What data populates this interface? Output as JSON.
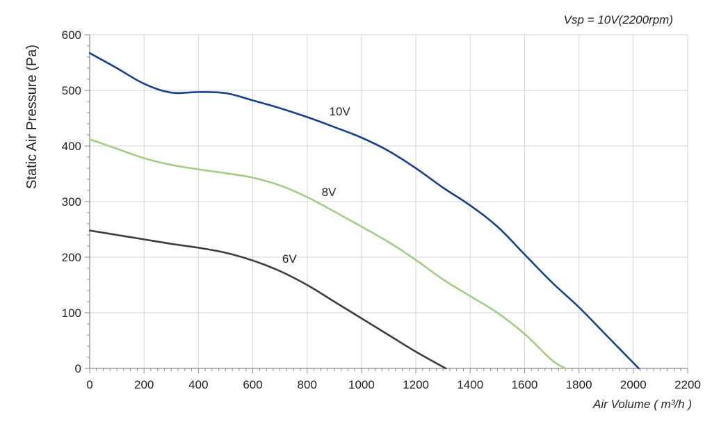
{
  "chart_data": {
    "type": "line",
    "title": "Vsp = 10V(2200rpm)",
    "xlabel": "Air Volume ( m³/h )",
    "ylabel": "Static Air Pressure  (Pa)",
    "xlim": [
      0,
      2200
    ],
    "ylim": [
      0,
      600
    ],
    "x_ticks": [
      0,
      200,
      400,
      600,
      800,
      1000,
      1200,
      1400,
      1600,
      1800,
      2000,
      2200
    ],
    "y_ticks": [
      0,
      100,
      200,
      300,
      400,
      500,
      600
    ],
    "x_tick_labels": [
      "0",
      "200",
      "400",
      "600",
      "800",
      "1000",
      "1200",
      "1400",
      "1600",
      "1800",
      "2000",
      "2200"
    ],
    "y_tick_labels": [
      "0",
      "100",
      "200",
      "300",
      "400",
      "500",
      "600"
    ],
    "grid": true,
    "series": [
      {
        "name": "10V",
        "color": "#1a3f8a",
        "x": [
          0,
          100,
          200,
          300,
          400,
          500,
          600,
          700,
          800,
          900,
          1000,
          1100,
          1200,
          1300,
          1400,
          1500,
          1600,
          1700,
          1800,
          1900,
          2020
        ],
        "y": [
          567,
          540,
          512,
          496,
          497,
          495,
          482,
          468,
          452,
          434,
          415,
          391,
          360,
          325,
          293,
          255,
          205,
          155,
          110,
          60,
          0
        ]
      },
      {
        "name": "8V",
        "color": "#a3cc85",
        "x": [
          0,
          100,
          200,
          300,
          400,
          500,
          600,
          700,
          800,
          900,
          1000,
          1100,
          1200,
          1300,
          1400,
          1500,
          1600,
          1700,
          1750
        ],
        "y": [
          412,
          395,
          378,
          366,
          358,
          351,
          343,
          329,
          308,
          282,
          255,
          227,
          195,
          160,
          130,
          100,
          62,
          15,
          0
        ]
      },
      {
        "name": "6V",
        "color": "#3d3d3d",
        "x": [
          0,
          100,
          200,
          300,
          400,
          500,
          600,
          700,
          800,
          900,
          1000,
          1100,
          1200,
          1310
        ],
        "y": [
          248,
          240,
          232,
          224,
          217,
          208,
          194,
          175,
          150,
          120,
          90,
          60,
          30,
          0
        ]
      }
    ],
    "series_labels": [
      {
        "text": "10V",
        "x": 920,
        "y": 455
      },
      {
        "text": "8V",
        "x": 880,
        "y": 310
      },
      {
        "text": "6V",
        "x": 735,
        "y": 190
      }
    ]
  }
}
